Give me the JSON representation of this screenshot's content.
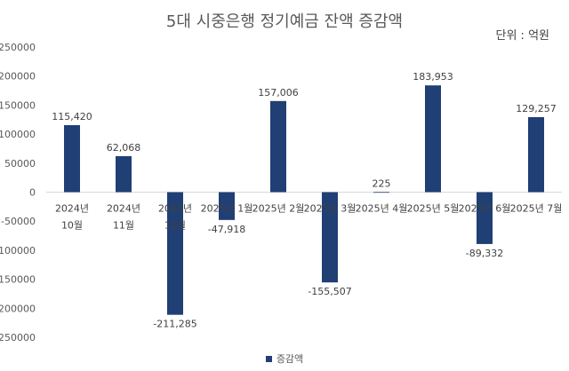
{
  "chart_data": {
    "type": "bar",
    "title": "5대 시중은행 정기예금 잔액 증감액",
    "unit_label": "단위 : 억원",
    "categories": [
      [
        "2024년",
        "10월"
      ],
      [
        "2024년",
        "11월"
      ],
      [
        "2024년",
        "12월"
      ],
      [
        "2025년 1월"
      ],
      [
        "2025년 2월"
      ],
      [
        "2025년 3월"
      ],
      [
        "2025년 4월"
      ],
      [
        "2025년 5월"
      ],
      [
        "2025년 6월"
      ],
      [
        "2025년 7월"
      ]
    ],
    "series": [
      {
        "name": "증감액",
        "color": "#203f75",
        "values": [
          115420,
          62068,
          -211285,
          -47918,
          157006,
          -155507,
          225,
          183953,
          -89332,
          129257
        ],
        "labels": [
          "115,420",
          "62,068",
          "-211,285",
          "-47,918",
          "157,006",
          "-155,507",
          "225",
          "183,953",
          "-89,332",
          "129,257"
        ]
      }
    ],
    "yticks": [
      250000,
      200000,
      150000,
      100000,
      50000,
      0,
      -50000,
      -100000,
      -150000,
      -200000,
      -250000
    ],
    "ylim": [
      -250000,
      250000
    ],
    "grid": false,
    "legend_position": "bottom"
  }
}
